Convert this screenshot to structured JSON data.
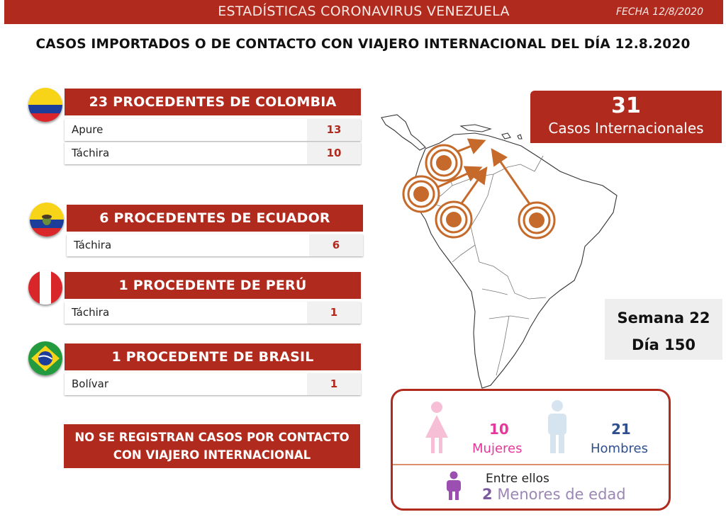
{
  "header": {
    "title": "ESTADÍSTICAS CORONAVIRUS VENEZUELA",
    "date": "FECHA 12/8/2020"
  },
  "main_heading": "CASOS IMPORTADOS O DE CONTACTO CON VIAJERO INTERNACIONAL DEL DÍA 12.8.2020",
  "groups": [
    {
      "title": "23 PROCEDENTES DE COLOMBIA",
      "rows": [
        {
          "name": "Apure",
          "value": "13"
        },
        {
          "name": "Táchira",
          "value": "10"
        }
      ]
    },
    {
      "title": "6 PROCEDENTES DE ECUADOR",
      "rows": [
        {
          "name": "Táchira",
          "value": "6"
        }
      ]
    },
    {
      "title": "1 PROCEDENTE DE PERÚ",
      "rows": [
        {
          "name": "Táchira",
          "value": "1"
        }
      ]
    },
    {
      "title": "1 PROCEDENTE DE BRASIL",
      "rows": [
        {
          "name": "Bolívar",
          "value": "1"
        }
      ]
    }
  ],
  "note": {
    "line1": "NO SE REGISTRAN CASOS POR CONTACTO",
    "line2": "CON VIAJERO INTERNACIONAL"
  },
  "total": {
    "number": "31",
    "label": "Casos Internacionales"
  },
  "week": {
    "week_label": "Semana 22",
    "day_label": "Día 150"
  },
  "gender": {
    "women_count": "10",
    "women_label": "Mujeres",
    "men_count": "21",
    "men_label": "Hombres",
    "minors_intro": "Entre ellos",
    "minors_count": "2",
    "minors_label": "Menores de edad"
  },
  "colors": {
    "primary_red": "#b02a1e",
    "women_pink": "#e6389a",
    "men_blue": "#2f4f8f",
    "minors_purple": "#7a5a9e",
    "arrow_orange": "#c56a2a"
  },
  "icons": [
    "colombia-flag-icon",
    "ecuador-flag-icon",
    "peru-flag-icon",
    "brazil-flag-icon",
    "woman-icon",
    "man-icon",
    "child-icon",
    "arrow-icon",
    "target-circle-icon"
  ]
}
